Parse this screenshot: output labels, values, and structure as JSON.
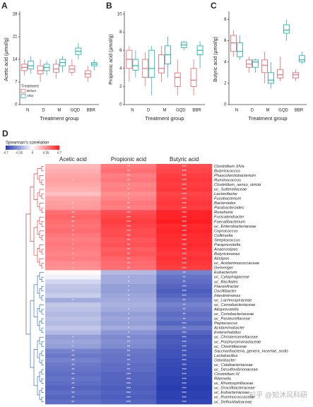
{
  "chart_data": [
    {
      "type": "box",
      "panel": "A",
      "ylabel": "Acetic acid (μmol/g)",
      "xlabel": "Treatment group",
      "categories": [
        "N",
        "D",
        "M",
        "GQD",
        "BBR"
      ],
      "ylim": [
        0,
        28
      ],
      "yticks": [
        0,
        7,
        14,
        21,
        28
      ],
      "legend_title": "Treatment",
      "legend": "bottom-left",
      "series": [
        {
          "name": "Before",
          "color": "#e8707a",
          "values": [
            [
              9,
              10.5,
              11.5,
              12.5,
              14
            ],
            [
              7,
              9.5,
              10.5,
              12,
              14
            ],
            [
              8,
              10,
              11,
              12.5,
              14
            ],
            [
              9,
              10,
              11,
              12,
              14
            ],
            [
              7,
              8.5,
              9.5,
              10.5,
              12
            ]
          ]
        },
        {
          "name": "After",
          "color": "#2bb5b0",
          "values": [
            [
              9.5,
              11,
              12,
              13.5,
              15
            ],
            [
              9,
              10.5,
              11.5,
              12.5,
              13.5
            ],
            [
              10,
              12,
              13,
              14,
              15
            ],
            [
              14,
              15.5,
              16.5,
              17.5,
              19
            ],
            [
              10.5,
              12,
              12.5,
              13,
              14
            ]
          ]
        }
      ]
    },
    {
      "type": "box",
      "panel": "B",
      "ylabel": "Propionic acid (μmol/g)",
      "xlabel": "Treatment group",
      "categories": [
        "N",
        "D",
        "M",
        "GQD",
        "BBR"
      ],
      "ylim": [
        0,
        10
      ],
      "yticks": [
        0,
        2,
        4,
        6,
        8,
        10
      ],
      "series": [
        {
          "name": "Before",
          "color": "#e8707a",
          "values": [
            [
              2.5,
              4,
              5,
              6,
              6.5
            ],
            [
              2,
              3,
              4,
              5,
              5.8
            ],
            [
              2.5,
              3.5,
              4,
              5.5,
              6.5
            ],
            [
              1,
              2,
              3,
              3.5,
              5
            ],
            [
              1,
              2,
              2.7,
              4,
              5
            ]
          ]
        },
        {
          "name": "After",
          "color": "#2bb5b0",
          "values": [
            [
              3,
              3.8,
              4.3,
              5,
              6
            ],
            [
              1,
              3,
              4,
              6,
              6.5
            ],
            [
              3,
              4.5,
              5.5,
              6.5,
              7.5
            ],
            [
              6,
              6.3,
              6.6,
              6.9,
              7
            ],
            [
              4,
              5.5,
              6,
              6.5,
              7
            ]
          ]
        }
      ]
    },
    {
      "type": "box",
      "panel": "C",
      "ylabel": "Butyric acid (μmol/g)",
      "xlabel": "Treatment group",
      "categories": [
        "N",
        "D",
        "M",
        "GQD",
        "BBR"
      ],
      "ylim": [
        0,
        8.5
      ],
      "yticks": [
        0,
        2,
        4,
        6,
        8
      ],
      "series": [
        {
          "name": "Before",
          "color": "#e8707a",
          "values": [
            [
              4.5,
              5,
              5.8,
              6.5,
              7
            ],
            [
              3,
              3.5,
              3.8,
              4.2,
              4.5
            ],
            [
              2,
              3,
              3.7,
              4.2,
              5
            ],
            [
              2.2,
              2.5,
              2.8,
              3.3,
              4.5
            ],
            [
              2.2,
              2.5,
              2.8,
              3,
              3.3
            ]
          ]
        },
        {
          "name": "After",
          "color": "#2bb5b0",
          "values": [
            [
              4.2,
              4.5,
              5,
              5.8,
              6.5
            ],
            [
              3,
              3.5,
              4,
              4.2,
              4.3
            ],
            [
              1.5,
              2,
              2.3,
              3,
              4
            ],
            [
              6,
              6.7,
              7,
              7.5,
              8
            ],
            [
              3.8,
              4,
              4.2,
              4.6,
              5
            ]
          ]
        }
      ]
    },
    {
      "type": "heatmap",
      "panel": "D",
      "colorbar_title": "Spearman's correlation",
      "zlim": [
        -0.7,
        0.7
      ],
      "zticks": [
        -0.7,
        -0.35,
        0,
        0.35,
        0.7
      ],
      "columns": [
        "Acetic acid",
        "Propionic acid",
        "Butyric acid"
      ],
      "rows": [
        "Clostridium XlVa",
        "Butyricicoccus",
        "Phascolarctobacterium",
        "Ruminococcus",
        "Clostridium_sensu_stricto",
        "uc_Sutterellaceae",
        "Lactonifactor",
        "Fusobacterium",
        "Bacteroides",
        "Parabacteroides",
        "Roseburia",
        "Fusicatenibacter",
        "Faecalibacterium",
        "uc_Enterobacteriaceae",
        "Coprococcus",
        "Collinsella",
        "Streptococcus",
        "Paraprevotella",
        "Anaerostipes",
        "Butyricimonas",
        "Alistipes",
        "uc_Acidaminococcaceae",
        "Gemmiger",
        "Eubacterium",
        "uc_Cytophagaceae",
        "uc_Bacillales",
        "Flavonifractor",
        "Oscillibacter",
        "Intestinimonas",
        "uc_Lachnospiraceae",
        "uc_Carnobacteriaceae",
        "Alloprevotella",
        "uc_Coriobacteriaceae",
        "uc_Pasteurellaceae",
        "Peptococcus",
        "Acidaminobacter",
        "Enterorhabdus",
        "uc_Christensenellaceae",
        "uc_Porphyromonadaceae",
        "uc_Clostridiaceae",
        "Saccharibacteria_genera_incertae_sedis",
        "Lactobacillus",
        "Odoribacter",
        "uc_Catabacteriaceae",
        "uc_Desulfovibrionaceae",
        "Clostridium IV",
        "Rikenella",
        "uc_Rhodospirillaceae",
        "uc_Gracilibacteraceae",
        "uc_Eubacteriaceae",
        "uc_Ruminococcaceae",
        "uc_Defluviitaleaceae"
      ],
      "values": [
        [
          0.22,
          0.42,
          0.55
        ],
        [
          0.25,
          0.45,
          0.58
        ],
        [
          0.28,
          0.4,
          0.6
        ],
        [
          0.3,
          0.42,
          0.62
        ],
        [
          0.27,
          0.38,
          0.6
        ],
        [
          0.25,
          0.4,
          0.62
        ],
        [
          0.2,
          0.35,
          0.58
        ],
        [
          0.28,
          0.38,
          0.6
        ],
        [
          0.3,
          0.42,
          0.62
        ],
        [
          0.32,
          0.4,
          0.6
        ],
        [
          0.45,
          0.55,
          0.68
        ],
        [
          0.48,
          0.58,
          0.68
        ],
        [
          0.45,
          0.6,
          0.7
        ],
        [
          0.44,
          0.58,
          0.66
        ],
        [
          0.46,
          0.55,
          0.68
        ],
        [
          0.42,
          0.56,
          0.66
        ],
        [
          0.4,
          0.52,
          0.65
        ],
        [
          0.42,
          0.54,
          0.66
        ],
        [
          0.4,
          0.5,
          0.64
        ],
        [
          0.38,
          0.52,
          0.62
        ],
        [
          0.4,
          0.48,
          0.64
        ],
        [
          0.36,
          0.46,
          0.62
        ],
        [
          0.35,
          0.45,
          0.6
        ],
        [
          0.02,
          -0.25,
          -0.45
        ],
        [
          -0.05,
          -0.3,
          -0.5
        ],
        [
          -0.15,
          -0.3,
          -0.52
        ],
        [
          -0.2,
          -0.35,
          -0.55
        ],
        [
          -0.22,
          -0.35,
          -0.58
        ],
        [
          -0.18,
          -0.32,
          -0.55
        ],
        [
          -0.3,
          -0.3,
          -0.5
        ],
        [
          -0.2,
          -0.28,
          -0.45
        ],
        [
          -0.22,
          -0.3,
          -0.48
        ],
        [
          -0.25,
          -0.35,
          -0.52
        ],
        [
          -0.22,
          -0.32,
          -0.5
        ],
        [
          -0.25,
          -0.35,
          -0.55
        ],
        [
          -0.2,
          -0.3,
          -0.48
        ],
        [
          -0.25,
          -0.38,
          -0.55
        ],
        [
          -0.35,
          -0.42,
          -0.6
        ],
        [
          -0.32,
          -0.4,
          -0.58
        ],
        [
          -0.35,
          -0.42,
          -0.6
        ],
        [
          -0.45,
          -0.48,
          -0.62
        ],
        [
          -0.48,
          -0.5,
          -0.62
        ],
        [
          -0.45,
          -0.5,
          -0.64
        ],
        [
          -0.48,
          -0.52,
          -0.65
        ],
        [
          -0.5,
          -0.52,
          -0.66
        ],
        [
          -0.52,
          -0.55,
          -0.66
        ],
        [
          -0.5,
          -0.55,
          -0.68
        ],
        [
          -0.52,
          -0.56,
          -0.68
        ],
        [
          -0.55,
          -0.58,
          -0.7
        ],
        [
          -0.52,
          -0.56,
          -0.68
        ],
        [
          -0.55,
          -0.58,
          -0.68
        ],
        [
          -0.52,
          -0.55,
          -0.66
        ]
      ],
      "significance": [
        [
          null,
          "**",
          "***"
        ],
        [
          null,
          "**",
          "***"
        ],
        [
          null,
          "**",
          "***"
        ],
        [
          "*",
          "**",
          "***"
        ],
        [
          null,
          "*",
          "***"
        ],
        [
          null,
          "**",
          "***"
        ],
        [
          null,
          "*",
          "***"
        ],
        [
          null,
          "*",
          "***"
        ],
        [
          "*",
          "**",
          "***"
        ],
        [
          "*",
          "**",
          "***"
        ],
        [
          "**",
          "***",
          "***"
        ],
        [
          "**",
          "***",
          "***"
        ],
        [
          "**",
          "***",
          "***"
        ],
        [
          "*",
          "***",
          "***"
        ],
        [
          "**",
          "***",
          "***"
        ],
        [
          "*",
          "***",
          "***"
        ],
        [
          "*",
          "**",
          "***"
        ],
        [
          "*",
          "**",
          "***"
        ],
        [
          "*",
          "**",
          "***"
        ],
        [
          "*",
          "**",
          "***"
        ],
        [
          "*",
          "**",
          "***"
        ],
        [
          "*",
          "**",
          "***"
        ],
        [
          "*",
          "**",
          "***"
        ],
        [
          null,
          null,
          "**"
        ],
        [
          null,
          "*",
          "**"
        ],
        [
          null,
          "*",
          "**"
        ],
        [
          null,
          "*",
          "***"
        ],
        [
          null,
          "*",
          "***"
        ],
        [
          null,
          "*",
          "***"
        ],
        [
          "*",
          "*",
          "**"
        ],
        [
          null,
          null,
          "**"
        ],
        [
          null,
          "*",
          "**"
        ],
        [
          null,
          "*",
          "**"
        ],
        [
          null,
          "*",
          "**"
        ],
        [
          null,
          "*",
          "***"
        ],
        [
          null,
          "*",
          "**"
        ],
        [
          null,
          "*",
          "***"
        ],
        [
          "*",
          "**",
          "***"
        ],
        [
          "*",
          "**",
          "***"
        ],
        [
          "*",
          "**",
          "***"
        ],
        [
          "**",
          "**",
          "***"
        ],
        [
          "**",
          "**",
          "***"
        ],
        [
          "**",
          "**",
          "***"
        ],
        [
          "**",
          "**",
          "***"
        ],
        [
          "**",
          "**",
          "***"
        ],
        [
          "**",
          "***",
          "***"
        ],
        [
          "**",
          "***",
          "***"
        ],
        [
          "**",
          "***",
          "***"
        ],
        [
          "**",
          "***",
          "***"
        ],
        [
          "**",
          "***",
          "***"
        ],
        [
          "**",
          "***",
          "***"
        ],
        [
          "**",
          "***",
          "***"
        ]
      ]
    }
  ],
  "watermark": "知乎 @知沐风科研"
}
